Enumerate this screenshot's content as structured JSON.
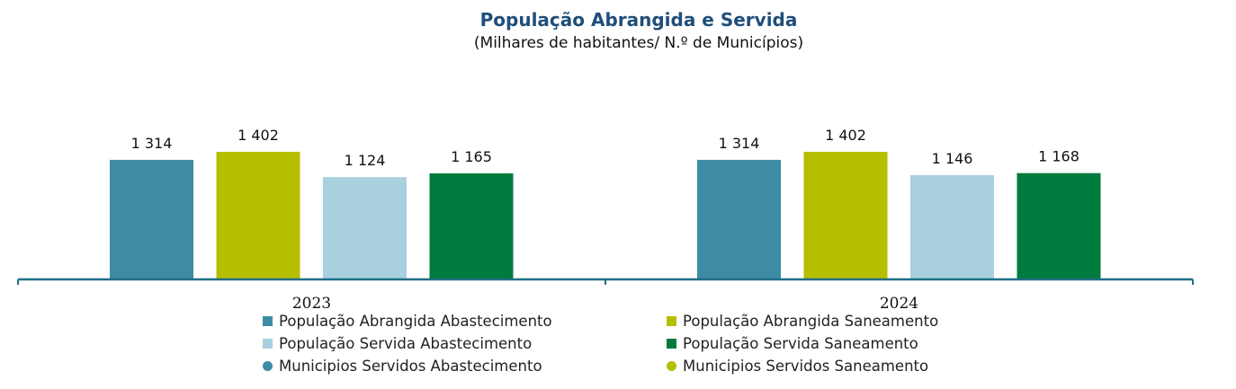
{
  "chart_data": {
    "type": "bar",
    "title": "População Abrangida  e Servida",
    "subtitle": "(Milhares de habitantes/ N.º de Municípios)",
    "categories": [
      "2023",
      "2024"
    ],
    "series": [
      {
        "name": "População Abrangida Abastecimento",
        "color": "#3d8ca3",
        "values": [
          1314,
          1314
        ],
        "labels": [
          "1 314",
          "1 314"
        ]
      },
      {
        "name": "População Abrangida Saneamento",
        "color": "#b5bf00",
        "values": [
          1402,
          1402
        ],
        "labels": [
          "1 402",
          "1 402"
        ]
      },
      {
        "name": "População Servida Abastecimento",
        "color": "#a8d0de",
        "values": [
          1124,
          1146
        ],
        "labels": [
          "1 124",
          "1 146"
        ]
      },
      {
        "name": "População Servida Saneamento",
        "color": "#007a3d",
        "values": [
          1165,
          1168
        ],
        "labels": [
          "1 165",
          "1 168"
        ]
      }
    ],
    "extra_legend": [
      {
        "name": "Municipios Servidos Abastecimento",
        "color": "#3d8ca3",
        "marker": "circle"
      },
      {
        "name": "Municipios Servidos Saneamento",
        "color": "#b5bf00",
        "marker": "circle"
      }
    ],
    "axis_color": "#1f6f87",
    "grid": false,
    "legend_position": "bottom"
  }
}
